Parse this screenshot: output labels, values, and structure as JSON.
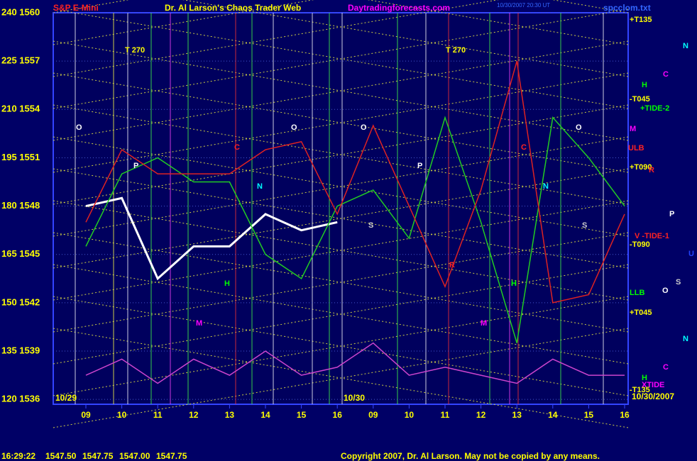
{
  "header": {
    "symbol": "S&P E-Mini",
    "title": "Dr. Al Larson's Chaos Trader Web",
    "site": "Daytradingforecasts.com",
    "timestamp": "10/30/2007 20:30 UT",
    "file": "spcclom.txt"
  },
  "chart_data": {
    "type": "line",
    "categories": [
      "09",
      "10",
      "11",
      "12",
      "13",
      "14",
      "15",
      "16",
      "09",
      "10",
      "11",
      "12",
      "13",
      "14",
      "15",
      "16"
    ],
    "dates": [
      "10/29",
      "10/30",
      "10/30/2007"
    ],
    "ylim": [
      1535.7,
      1560
    ],
    "yticks": [
      {
        "value": 1560,
        "label": "240 1560"
      },
      {
        "value": 1557,
        "label": "225 1557"
      },
      {
        "value": 1554,
        "label": "210 1554"
      },
      {
        "value": 1551,
        "label": "195 1551"
      },
      {
        "value": 1548,
        "label": "180 1548"
      },
      {
        "value": 1545,
        "label": "165 1545"
      },
      {
        "value": 1542,
        "label": "150 1542"
      },
      {
        "value": 1539,
        "label": "135 1539"
      },
      {
        "value": 1536,
        "label": "120 1536"
      }
    ],
    "series": [
      {
        "name": "Price",
        "color": "#ffffff",
        "values": [
          1548,
          1548.5,
          1543.5,
          1545.5,
          1545.5,
          1547.5,
          1546.5,
          1547,
          null,
          null,
          null,
          null,
          null,
          null,
          null,
          null
        ]
      },
      {
        "name": "TIDE-1",
        "color": "#22cc22",
        "values": [
          1545.5,
          1550,
          1551,
          1549.5,
          1549.5,
          1545,
          1543.5,
          1548,
          1549,
          1546,
          1553.5,
          1547,
          1539.5,
          1553.5,
          1551,
          1548
        ]
      },
      {
        "name": "TIDE-2",
        "color": "#dd2222",
        "values": [
          1547,
          1551.5,
          1550,
          1550,
          1550,
          1551.5,
          1552,
          1547.5,
          1553,
          1548,
          1543,
          1549,
          1557,
          1542,
          1542.5,
          1547.5
        ]
      },
      {
        "name": "XTIDE",
        "color": "#cc44cc",
        "values": [
          1537.5,
          1538.5,
          1537,
          1538.5,
          1537.5,
          1539,
          1537.5,
          1538,
          1539.5,
          1537.5,
          1538,
          1537.5,
          1537,
          1538.5,
          1537.5,
          1537.5
        ]
      }
    ],
    "right_labels": [
      {
        "text": "+T135",
        "color": "#ffff00"
      },
      {
        "text": "N",
        "color": "#00ffff"
      },
      {
        "text": "C",
        "color": "#ff00ff"
      },
      {
        "text": "H",
        "color": "#00ff00"
      },
      {
        "text": "-T045",
        "color": "#ffff00"
      },
      {
        "text": "+TIDE-2",
        "color": "#00ff00"
      },
      {
        "text": "M",
        "color": "#ff00ff"
      },
      {
        "text": "ULB",
        "color": "#ff2222"
      },
      {
        "text": "+T090",
        "color": "#ffff00"
      },
      {
        "text": "R",
        "color": "#ff2222"
      },
      {
        "text": "P",
        "color": "#ffffff"
      },
      {
        "text": "V -TIDE-1",
        "color": "#ff2222"
      },
      {
        "text": "-T090",
        "color": "#ffff00"
      },
      {
        "text": "U",
        "color": "#2244ff"
      },
      {
        "text": "S",
        "color": "#cccccc"
      },
      {
        "text": "LLB",
        "color": "#00ff00"
      },
      {
        "text": "O",
        "color": "#ffffff"
      },
      {
        "text": "+T045",
        "color": "#ffff00"
      },
      {
        "text": "N",
        "color": "#00ffff"
      },
      {
        "text": "C",
        "color": "#ff00ff"
      },
      {
        "text": "H",
        "color": "#00ff00"
      },
      {
        "text": "XTIDE",
        "color": "#ff00ff"
      },
      {
        "text": "-T135",
        "color": "#ffff00"
      }
    ],
    "annotations": [
      {
        "text": "T 270",
        "color": "#ffff00"
      },
      {
        "text": "T 270",
        "color": "#ffff00"
      },
      {
        "text": "O",
        "color": "#ffffff"
      },
      {
        "text": "O",
        "color": "#ffffff"
      },
      {
        "text": "O",
        "color": "#ffffff"
      },
      {
        "text": "O",
        "color": "#ffffff"
      },
      {
        "text": "P",
        "color": "#ffffff"
      },
      {
        "text": "P",
        "color": "#ffffff"
      },
      {
        "text": "C",
        "color": "#ff2222"
      },
      {
        "text": "C",
        "color": "#ff2222"
      },
      {
        "text": "N",
        "color": "#00ffff"
      },
      {
        "text": "N",
        "color": "#00ffff"
      },
      {
        "text": "H",
        "color": "#00ff00"
      },
      {
        "text": "H",
        "color": "#00ff00"
      },
      {
        "text": "M",
        "color": "#ff00ff"
      },
      {
        "text": "M",
        "color": "#ff00ff"
      },
      {
        "text": "R",
        "color": "#ff2222"
      },
      {
        "text": "S",
        "color": "#cccccc"
      },
      {
        "text": "S",
        "color": "#cccccc"
      }
    ]
  },
  "footer": {
    "time": "16:29:22",
    "quotes": [
      "1547.50",
      "1547.75",
      "1547.00",
      "1547.75"
    ],
    "copyright": "Copyright 2007, Dr. Al Larson. May not be copied by any means."
  }
}
